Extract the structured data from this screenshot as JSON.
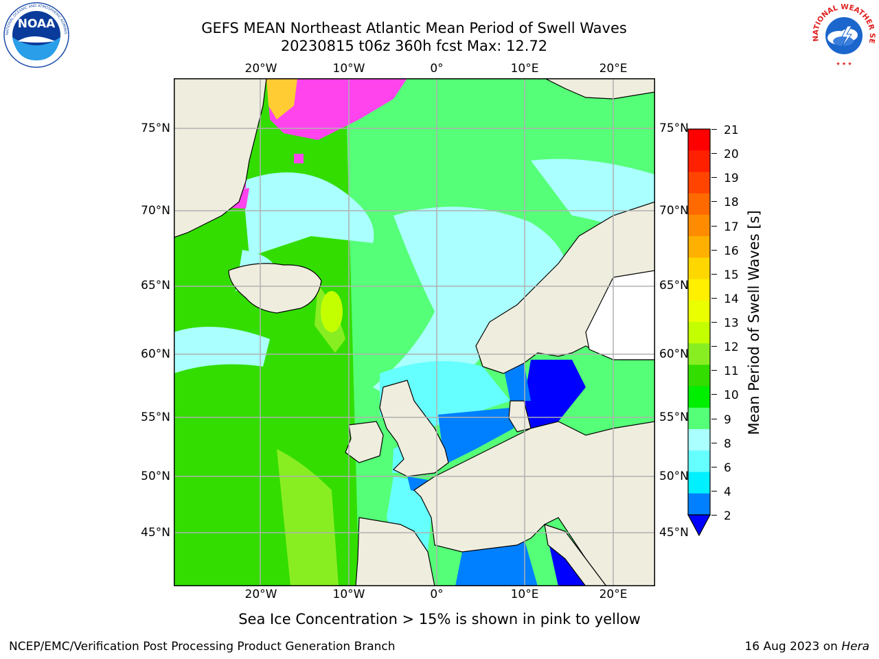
{
  "title": {
    "line1": "GEFS MEAN Northeast Atlantic Mean Period of Swell Waves",
    "line2": "20230815 t06z 360h fcst   Max: 12.72"
  },
  "logos": {
    "left_name": "noaa-logo",
    "left_text": "NOAA",
    "left_ring_text": "NATIONAL OCEANIC AND ATMOSPHERIC ADMINISTRATION · U.S. DEPARTMENT OF COMMERCE",
    "right_name": "nws-logo",
    "right_ring_text": "NATIONAL WEATHER SERVICE"
  },
  "map": {
    "lon_ticks_top": [
      "20°W",
      "10°W",
      "0°",
      "10°E",
      "20°E"
    ],
    "lon_ticks_bottom": [
      "20°W",
      "10°W",
      "0°",
      "10°E",
      "20°E"
    ],
    "lat_ticks_left": [
      "75°N",
      "70°N",
      "65°N",
      "60°N",
      "55°N",
      "50°N",
      "45°N"
    ],
    "lat_ticks_right": [
      "75°N",
      "70°N",
      "65°N",
      "60°N",
      "55°N",
      "50°N",
      "45°N"
    ],
    "colors": {
      "land": "#efedde",
      "grid": "#b0b0b0",
      "ice_pink": "#ff44ee",
      "ice_yellow": "#ffcc33"
    }
  },
  "colorbar": {
    "label": "Mean Period of Swell Waves [s]",
    "ticks": [
      "21",
      "20",
      "19",
      "18",
      "17",
      "16",
      "15",
      "14",
      "13",
      "12",
      "11",
      "10",
      "9",
      "8",
      "6",
      "4",
      "2"
    ],
    "colors": [
      "#ff0000",
      "#ff2000",
      "#ff4400",
      "#ff6a00",
      "#ff8c00",
      "#ffb000",
      "#ffd700",
      "#fff000",
      "#eaff00",
      "#c4ff00",
      "#88ee22",
      "#33dd00",
      "#00ee00",
      "#55ff77",
      "#aaffff",
      "#66ffff",
      "#00f0ff",
      "#0080ff",
      "#0000ff"
    ]
  },
  "caption": "Sea Ice Concentration > 15% is shown in pink to yellow",
  "footer": {
    "left": "NCEP/EMC/Verification Post Processing Product Generation Branch",
    "right_date": "16 Aug 2023 on ",
    "right_host": "Hera"
  }
}
